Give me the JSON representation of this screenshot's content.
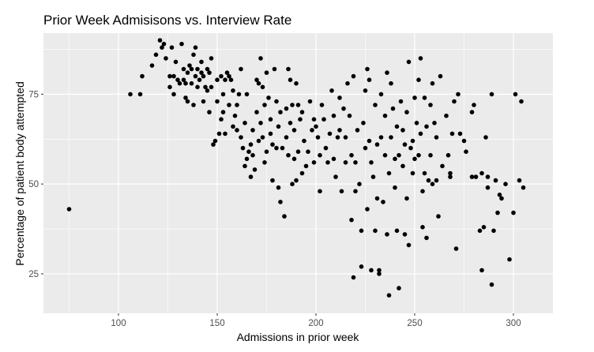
{
  "chart_data": {
    "type": "scatter",
    "title": "Prior Week Admisisons vs. Interview Rate",
    "xlabel": "Admissions in prior week",
    "ylabel": "Percentage of patient body attempted",
    "xlim": [
      62,
      320
    ],
    "ylim": [
      14,
      92
    ],
    "xticks": [
      100,
      150,
      200,
      250,
      300
    ],
    "yticks": [
      25,
      50,
      75
    ],
    "grid": true,
    "colors": {
      "panel": "#ebebeb",
      "grid": "#ffffff",
      "point": "#000000",
      "tick": "#4d4d4d"
    },
    "points": [
      [
        75,
        43
      ],
      [
        106,
        75
      ],
      [
        111,
        75
      ],
      [
        112,
        80
      ],
      [
        117,
        83
      ],
      [
        119,
        86
      ],
      [
        121,
        90
      ],
      [
        122,
        88
      ],
      [
        123,
        89
      ],
      [
        124,
        85
      ],
      [
        126,
        80
      ],
      [
        126,
        77
      ],
      [
        127,
        88
      ],
      [
        128,
        80
      ],
      [
        128,
        75
      ],
      [
        129,
        84
      ],
      [
        130,
        79
      ],
      [
        131,
        78
      ],
      [
        132,
        89
      ],
      [
        133,
        82
      ],
      [
        133,
        79
      ],
      [
        134,
        74
      ],
      [
        134,
        78
      ],
      [
        135,
        81
      ],
      [
        135,
        73
      ],
      [
        136,
        83
      ],
      [
        137,
        82
      ],
      [
        137,
        78
      ],
      [
        138,
        72
      ],
      [
        138,
        86
      ],
      [
        139,
        80
      ],
      [
        139,
        88
      ],
      [
        140,
        82
      ],
      [
        140,
        77
      ],
      [
        141,
        79
      ],
      [
        142,
        84
      ],
      [
        142,
        81
      ],
      [
        143,
        80
      ],
      [
        143,
        73
      ],
      [
        144,
        77
      ],
      [
        145,
        76
      ],
      [
        145,
        82
      ],
      [
        146,
        70
      ],
      [
        146,
        81
      ],
      [
        147,
        85
      ],
      [
        147,
        77
      ],
      [
        148,
        61
      ],
      [
        149,
        62
      ],
      [
        150,
        79
      ],
      [
        150,
        73
      ],
      [
        151,
        64
      ],
      [
        152,
        80
      ],
      [
        152,
        68
      ],
      [
        153,
        70
      ],
      [
        153,
        75
      ],
      [
        154,
        79
      ],
      [
        154,
        64
      ],
      [
        155,
        81
      ],
      [
        156,
        80
      ],
      [
        156,
        72
      ],
      [
        157,
        79
      ],
      [
        158,
        66
      ],
      [
        158,
        76
      ],
      [
        159,
        69
      ],
      [
        160,
        65
      ],
      [
        160,
        72
      ],
      [
        161,
        75
      ],
      [
        162,
        82
      ],
      [
        162,
        63
      ],
      [
        163,
        60
      ],
      [
        164,
        55
      ],
      [
        164,
        67
      ],
      [
        165,
        57
      ],
      [
        165,
        75
      ],
      [
        166,
        59
      ],
      [
        167,
        61
      ],
      [
        167,
        52
      ],
      [
        168,
        58
      ],
      [
        168,
        65
      ],
      [
        169,
        54
      ],
      [
        170,
        70
      ],
      [
        170,
        79
      ],
      [
        171,
        62
      ],
      [
        171,
        78
      ],
      [
        172,
        85
      ],
      [
        172,
        67
      ],
      [
        173,
        77
      ],
      [
        173,
        63
      ],
      [
        174,
        56
      ],
      [
        174,
        72
      ],
      [
        175,
        59
      ],
      [
        175,
        81
      ],
      [
        176,
        74
      ],
      [
        177,
        64
      ],
      [
        177,
        68
      ],
      [
        178,
        51
      ],
      [
        178,
        61
      ],
      [
        179,
        82
      ],
      [
        180,
        73
      ],
      [
        180,
        60
      ],
      [
        181,
        49
      ],
      [
        181,
        66
      ],
      [
        182,
        70
      ],
      [
        182,
        45
      ],
      [
        183,
        60
      ],
      [
        184,
        41
      ],
      [
        185,
        71
      ],
      [
        185,
        63
      ],
      [
        186,
        58
      ],
      [
        186,
        82
      ],
      [
        187,
        79
      ],
      [
        187,
        67
      ],
      [
        188,
        72
      ],
      [
        188,
        50
      ],
      [
        189,
        65
      ],
      [
        189,
        57
      ],
      [
        190,
        78
      ],
      [
        190,
        51
      ],
      [
        191,
        59
      ],
      [
        191,
        72
      ],
      [
        192,
        68
      ],
      [
        193,
        53
      ],
      [
        193,
        70
      ],
      [
        194,
        62
      ],
      [
        195,
        55
      ],
      [
        196,
        59
      ],
      [
        197,
        73
      ],
      [
        198,
        65
      ],
      [
        199,
        56
      ],
      [
        199,
        68
      ],
      [
        200,
        66
      ],
      [
        201,
        63
      ],
      [
        202,
        58
      ],
      [
        202,
        48
      ],
      [
        203,
        72
      ],
      [
        204,
        68
      ],
      [
        205,
        60
      ],
      [
        206,
        56
      ],
      [
        207,
        64
      ],
      [
        208,
        76
      ],
      [
        209,
        69
      ],
      [
        209,
        57
      ],
      [
        210,
        52
      ],
      [
        211,
        63
      ],
      [
        212,
        74
      ],
      [
        212,
        65
      ],
      [
        213,
        48
      ],
      [
        214,
        71
      ],
      [
        215,
        56
      ],
      [
        215,
        63
      ],
      [
        216,
        78
      ],
      [
        217,
        69
      ],
      [
        218,
        58
      ],
      [
        218,
        40
      ],
      [
        219,
        80
      ],
      [
        219,
        24
      ],
      [
        220,
        56
      ],
      [
        220,
        48
      ],
      [
        221,
        65
      ],
      [
        222,
        50
      ],
      [
        223,
        27
      ],
      [
        223,
        37
      ],
      [
        224,
        67
      ],
      [
        225,
        76
      ],
      [
        225,
        60
      ],
      [
        226,
        82
      ],
      [
        226,
        43
      ],
      [
        227,
        79
      ],
      [
        227,
        62
      ],
      [
        228,
        26
      ],
      [
        228,
        56
      ],
      [
        229,
        52
      ],
      [
        230,
        72
      ],
      [
        230,
        37
      ],
      [
        231,
        61
      ],
      [
        231,
        46
      ],
      [
        232,
        26
      ],
      [
        232,
        25
      ],
      [
        233,
        75
      ],
      [
        233,
        63
      ],
      [
        234,
        45
      ],
      [
        235,
        58
      ],
      [
        235,
        69
      ],
      [
        236,
        81
      ],
      [
        236,
        36
      ],
      [
        237,
        19
      ],
      [
        237,
        53
      ],
      [
        238,
        78
      ],
      [
        238,
        63
      ],
      [
        239,
        71
      ],
      [
        240,
        57
      ],
      [
        240,
        49
      ],
      [
        241,
        66
      ],
      [
        241,
        37
      ],
      [
        242,
        21
      ],
      [
        242,
        58
      ],
      [
        243,
        73
      ],
      [
        244,
        65
      ],
      [
        244,
        55
      ],
      [
        245,
        61
      ],
      [
        245,
        36
      ],
      [
        246,
        70
      ],
      [
        246,
        46
      ],
      [
        247,
        33
      ],
      [
        247,
        84
      ],
      [
        248,
        60
      ],
      [
        249,
        62
      ],
      [
        249,
        53
      ],
      [
        250,
        74
      ],
      [
        250,
        57
      ],
      [
        251,
        67
      ],
      [
        252,
        58
      ],
      [
        252,
        79
      ],
      [
        253,
        85
      ],
      [
        253,
        64
      ],
      [
        254,
        38
      ],
      [
        254,
        48
      ],
      [
        255,
        74
      ],
      [
        255,
        53
      ],
      [
        256,
        35
      ],
      [
        256,
        66
      ],
      [
        257,
        51
      ],
      [
        258,
        72
      ],
      [
        258,
        58
      ],
      [
        259,
        78
      ],
      [
        259,
        50
      ],
      [
        260,
        67
      ],
      [
        261,
        63
      ],
      [
        261,
        51
      ],
      [
        262,
        41
      ],
      [
        263,
        80
      ],
      [
        264,
        55
      ],
      [
        266,
        69
      ],
      [
        267,
        58
      ],
      [
        268,
        53
      ],
      [
        268,
        52
      ],
      [
        269,
        64
      ],
      [
        270,
        73
      ],
      [
        271,
        32
      ],
      [
        272,
        75
      ],
      [
        273,
        64
      ],
      [
        275,
        62
      ],
      [
        276,
        59
      ],
      [
        279,
        52
      ],
      [
        279,
        70
      ],
      [
        280,
        72
      ],
      [
        281,
        52
      ],
      [
        283,
        37
      ],
      [
        284,
        26
      ],
      [
        284,
        53
      ],
      [
        285,
        38
      ],
      [
        286,
        63
      ],
      [
        287,
        52
      ],
      [
        287,
        49
      ],
      [
        289,
        22
      ],
      [
        289,
        75
      ],
      [
        290,
        37
      ],
      [
        291,
        51
      ],
      [
        292,
        42
      ],
      [
        293,
        47
      ],
      [
        294,
        46
      ],
      [
        296,
        50
      ],
      [
        298,
        29
      ],
      [
        300,
        42
      ],
      [
        301,
        75
      ],
      [
        303,
        51
      ],
      [
        304,
        73
      ],
      [
        305,
        49
      ]
    ]
  }
}
